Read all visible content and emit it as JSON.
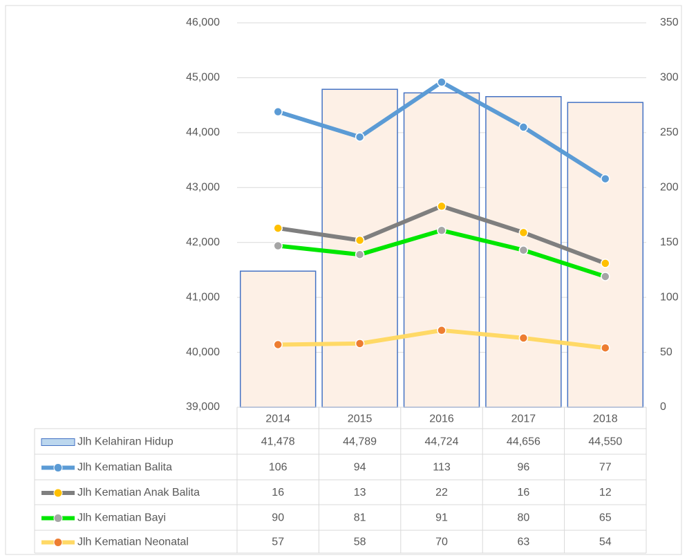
{
  "chart_data": {
    "type": "combo",
    "categories": [
      "2014",
      "2015",
      "2016",
      "2017",
      "2018"
    ],
    "ylim": [
      39000,
      46000
    ],
    "yticks": [
      {
        "value": 39000,
        "label": "39,000"
      },
      {
        "value": 40000,
        "label": "40,000"
      },
      {
        "value": 41000,
        "label": "41,000"
      },
      {
        "value": 42000,
        "label": "42,000"
      },
      {
        "value": 43000,
        "label": "43,000"
      },
      {
        "value": 44000,
        "label": "44,000"
      },
      {
        "value": 45000,
        "label": "45,000"
      },
      {
        "value": 46000,
        "label": "46,000"
      }
    ],
    "y2lim": [
      0,
      350
    ],
    "y2ticks": [
      0,
      50,
      100,
      150,
      200,
      250,
      300,
      350
    ],
    "stacked_lines": true,
    "grid": true,
    "series": [
      {
        "name": "Jlh Kelahiran Hidup",
        "kind": "bar",
        "color": "#4472c4",
        "values": [
          41478,
          44789,
          44724,
          44656,
          44550
        ],
        "value_labels": [
          "41,478",
          "44,789",
          "44,724",
          "44,656",
          "44,550"
        ]
      },
      {
        "name": "Jlh Kematian Balita",
        "kind": "line",
        "axis": "y2",
        "color": "#5b9bd5",
        "marker_color": "#5b9bd5",
        "values": [
          106,
          94,
          113,
          96,
          77
        ]
      },
      {
        "name": "Jlh Kematian Anak Balita",
        "kind": "line",
        "axis": "y2",
        "color": "#7f7f7f",
        "marker_color": "#ffc000",
        "values": [
          16,
          13,
          22,
          16,
          12
        ]
      },
      {
        "name": "Jlh Kematian Bayi",
        "kind": "line",
        "axis": "y2",
        "color": "#00e600",
        "marker_color": "#a5a5a5",
        "values": [
          90,
          81,
          91,
          80,
          65
        ]
      },
      {
        "name": "Jlh Kematian Neonatal",
        "kind": "line",
        "axis": "y2",
        "color": "#ffd966",
        "marker_color": "#ed7d31",
        "values": [
          57,
          58,
          70,
          63,
          54
        ]
      }
    ]
  }
}
